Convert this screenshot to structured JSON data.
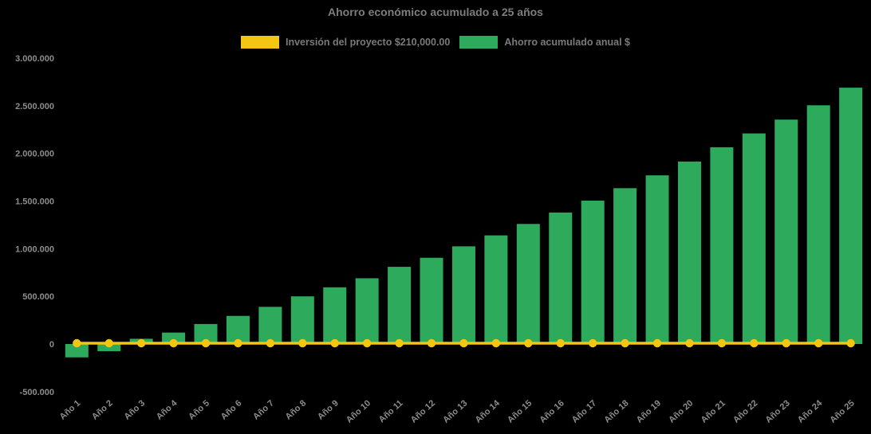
{
  "page": {
    "background": "#000000",
    "title_color": "#7d7d7d",
    "legend_text_color": "#7a7a7a",
    "axis_text_color": "#8c8c8c"
  },
  "chart_data": {
    "type": "bar",
    "title": "Ahorro económico acumulado a 25 años",
    "xlabel": "",
    "ylabel": "",
    "ylim": [
      -500000,
      3000000
    ],
    "ytick_step": 500000,
    "grid": false,
    "legend_position": "top",
    "categories": [
      "Año 1",
      "Año 2",
      "Año 3",
      "Año 4",
      "Año 5",
      "Año 6",
      "Año 7",
      "Año 8",
      "Año 9",
      "Año 10",
      "Año 11",
      "Año 12",
      "Año 13",
      "Año 14",
      "Año 15",
      "Año 16",
      "Año 17",
      "Año 18",
      "Año 19",
      "Año 20",
      "Año 21",
      "Año 22",
      "Año 23",
      "Año 24",
      "Año 25"
    ],
    "yticks": [
      {
        "value": 3000000,
        "label": "3.000.000"
      },
      {
        "value": 2500000,
        "label": "2.500.000"
      },
      {
        "value": 2000000,
        "label": "2.000.000"
      },
      {
        "value": 1500000,
        "label": "1.500.000"
      },
      {
        "value": 1000000,
        "label": "1.000.000"
      },
      {
        "value": 500000,
        "label": "500.000"
      },
      {
        "value": 0,
        "label": "0"
      },
      {
        "value": -500000,
        "label": "-500.000"
      }
    ],
    "series": [
      {
        "name": "Inversión del proyecto $210,000.00",
        "type": "line",
        "color": "#f5c513",
        "values": [
          0,
          0,
          0,
          0,
          0,
          0,
          0,
          0,
          0,
          0,
          0,
          0,
          0,
          0,
          0,
          0,
          0,
          0,
          0,
          0,
          0,
          0,
          0,
          0,
          0
        ]
      },
      {
        "name": "Ahorro acumulado anual $",
        "type": "bar",
        "color": "#2daa5c",
        "values": [
          -140000,
          -75000,
          55000,
          120000,
          210000,
          295000,
          390000,
          500000,
          595000,
          690000,
          810000,
          905000,
          1025000,
          1140000,
          1260000,
          1380000,
          1505000,
          1635000,
          1770000,
          1915000,
          2065000,
          2210000,
          2355000,
          2505000,
          2690000
        ]
      }
    ]
  }
}
